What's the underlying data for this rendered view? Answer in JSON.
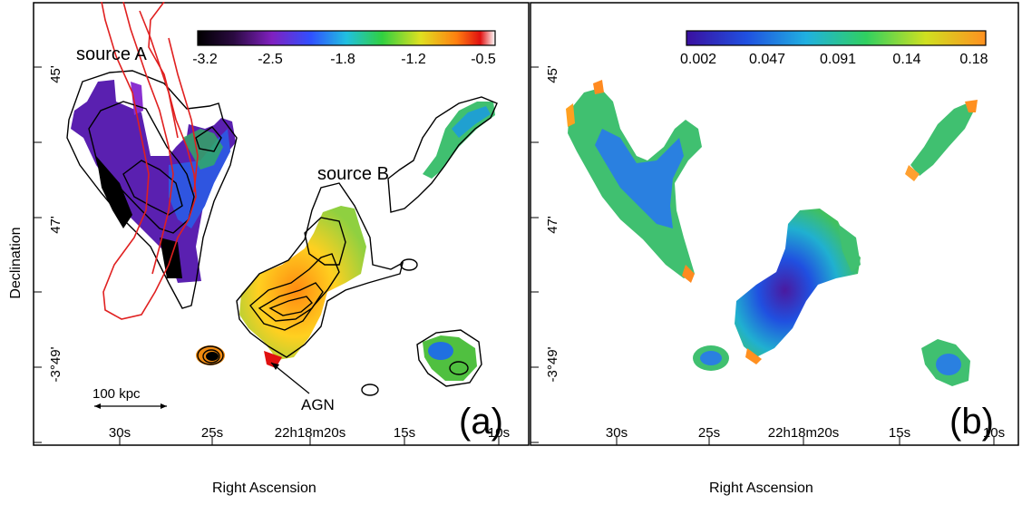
{
  "y_axis_label": "Declination",
  "x_axis_label": "Right Ascension",
  "panels": [
    {
      "label": "(a)",
      "colorbar": {
        "ticks": [
          "-3.2",
          "-2.5",
          "-1.8",
          "-1.2",
          "-0.5"
        ],
        "colormap": "black-purple-blue-cyan-green-yellow-orange-red-white"
      },
      "annotations": {
        "source_a": "source A",
        "source_b": "source B",
        "agn": "AGN",
        "scale_bar": "100 kpc"
      },
      "dec_ticks": [
        "45'",
        "47'",
        "-3°49'"
      ],
      "ra_ticks": [
        "30s",
        "25s",
        "22h18m20s",
        "15s",
        "10s"
      ]
    },
    {
      "label": "(b)",
      "colorbar": {
        "ticks": [
          "0.002",
          "0.047",
          "0.091",
          "0.14",
          "0.18"
        ],
        "colormap": "purple-blue-cyan-green-yellow-orange"
      },
      "dec_ticks": [
        "45'",
        "47'",
        "-3°49'"
      ],
      "ra_ticks": [
        "30s",
        "25s",
        "22h18m20s",
        "15s",
        "10s"
      ]
    }
  ],
  "colors": {
    "contour_black": "#000000",
    "contour_red": "#e02020",
    "frame": "#000000"
  }
}
